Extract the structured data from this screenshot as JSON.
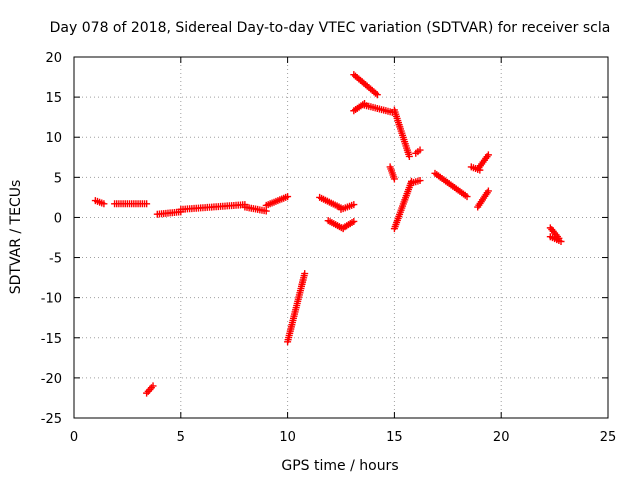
{
  "chart_data": {
    "type": "scatter",
    "title": "Day 078 of 2018, Sidereal Day-to-day VTEC variation (SDTVAR) for receiver scla",
    "xlabel": "GPS time / hours",
    "ylabel": "SDTVAR / TECUs",
    "xlim": [
      0,
      25
    ],
    "ylim": [
      -25,
      20
    ],
    "xticks": [
      0,
      5,
      10,
      15,
      20,
      25
    ],
    "yticks": [
      -25,
      -20,
      -15,
      -10,
      -5,
      0,
      5,
      10,
      15,
      20
    ],
    "grid": true,
    "marker": "plus",
    "color": "#ff0000",
    "segments": [
      {
        "x_start": 1.0,
        "x_end": 1.4,
        "y_start": 2.1,
        "y_end": 1.7
      },
      {
        "x_start": 1.9,
        "x_end": 3.4,
        "y_start": 1.7,
        "y_end": 1.7
      },
      {
        "x_start": 3.4,
        "x_end": 3.7,
        "y_start": -21.9,
        "y_end": -21.0
      },
      {
        "x_start": 3.9,
        "x_end": 5.0,
        "y_start": 0.4,
        "y_end": 0.7
      },
      {
        "x_start": 5.0,
        "x_end": 8.0,
        "y_start": 1.0,
        "y_end": 1.6
      },
      {
        "x_start": 8.0,
        "x_end": 9.0,
        "y_start": 1.3,
        "y_end": 0.8
      },
      {
        "x_start": 9.0,
        "x_end": 10.0,
        "y_start": 1.5,
        "y_end": 2.6
      },
      {
        "x_start": 10.0,
        "x_end": 10.8,
        "y_start": -15.5,
        "y_end": -7.0
      },
      {
        "x_start": 11.5,
        "x_end": 12.5,
        "y_start": 2.5,
        "y_end": 1.2
      },
      {
        "x_start": 12.5,
        "x_end": 13.1,
        "y_start": 1.0,
        "y_end": 1.6
      },
      {
        "x_start": 11.9,
        "x_end": 12.6,
        "y_start": -0.4,
        "y_end": -1.4
      },
      {
        "x_start": 12.6,
        "x_end": 13.1,
        "y_start": -1.3,
        "y_end": -0.5
      },
      {
        "x_start": 13.1,
        "x_end": 13.6,
        "y_start": 13.3,
        "y_end": 14.2
      },
      {
        "x_start": 13.6,
        "x_end": 14.9,
        "y_start": 14.0,
        "y_end": 13.1
      },
      {
        "x_start": 13.1,
        "x_end": 14.2,
        "y_start": 17.8,
        "y_end": 15.3
      },
      {
        "x_start": 14.8,
        "x_end": 15.0,
        "y_start": 6.3,
        "y_end": 4.8
      },
      {
        "x_start": 15.0,
        "x_end": 15.7,
        "y_start": 13.4,
        "y_end": 7.6
      },
      {
        "x_start": 15.0,
        "x_end": 15.8,
        "y_start": -1.4,
        "y_end": 4.5
      },
      {
        "x_start": 15.8,
        "x_end": 16.2,
        "y_start": 4.3,
        "y_end": 4.6
      },
      {
        "x_start": 16.0,
        "x_end": 16.2,
        "y_start": 8.0,
        "y_end": 8.4
      },
      {
        "x_start": 16.9,
        "x_end": 18.4,
        "y_start": 5.5,
        "y_end": 2.6
      },
      {
        "x_start": 18.9,
        "x_end": 19.4,
        "y_start": 6.0,
        "y_end": 7.8
      },
      {
        "x_start": 18.6,
        "x_end": 19.0,
        "y_start": 6.3,
        "y_end": 5.9
      },
      {
        "x_start": 18.9,
        "x_end": 19.4,
        "y_start": 1.3,
        "y_end": 3.3
      },
      {
        "x_start": 22.3,
        "x_end": 22.7,
        "y_start": -1.3,
        "y_end": -2.6
      },
      {
        "x_start": 22.3,
        "x_end": 22.8,
        "y_start": -2.4,
        "y_end": -3.0
      }
    ]
  }
}
